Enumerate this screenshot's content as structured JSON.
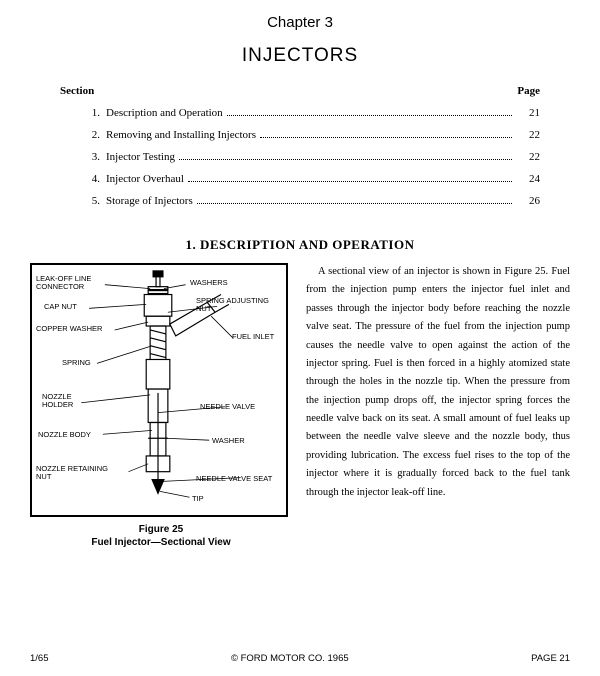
{
  "chapter": "Chapter 3",
  "title": "INJECTORS",
  "toc": {
    "head_section": "Section",
    "head_page": "Page",
    "items": [
      {
        "num": "1.",
        "label": "Description and Operation",
        "page": "21"
      },
      {
        "num": "2.",
        "label": "Removing and Installing Injectors",
        "page": "22"
      },
      {
        "num": "3.",
        "label": "Injector Testing",
        "page": "22"
      },
      {
        "num": "4.",
        "label": "Injector Overhaul",
        "page": "24"
      },
      {
        "num": "5.",
        "label": "Storage of Injectors",
        "page": "26"
      }
    ]
  },
  "section_title": "1.  DESCRIPTION  AND  OPERATION",
  "figure": {
    "labels": {
      "leak_off": "LEAK-OFF LINE\nCONNECTOR",
      "cap_nut": "CAP NUT",
      "copper_washer": "COPPER WASHER",
      "spring": "SPRING",
      "nozzle_holder": "NOZZLE\nHOLDER",
      "nozzle_body": "NOZZLE BODY",
      "nozzle_retaining_nut": "NOZZLE RETAINING\nNUT",
      "washers": "WASHERS",
      "spring_adjusting_nut": "SPRING ADJUSTING\nNUT",
      "fuel_inlet": "FUEL INLET",
      "needle_valve": "NEEDLE VALVE",
      "washer": "WASHER",
      "needle_valve_seat": "NEEDLE VALVE SEAT",
      "tip": "TIP"
    },
    "caption_line1": "Figure 25",
    "caption_line2": "Fuel Injector—Sectional View"
  },
  "body_text": "A sectional view of an injector is shown in Figure 25. Fuel from the injection pump enters the injector fuel inlet and passes through the injector body before reaching the nozzle valve seat. The pressure of the fuel from the injection pump causes the needle valve to open against the action of the injector spring. Fuel is then forced in a highly atomized state through the holes in the nozzle tip. When the pressure from the injection pump drops off, the injector spring forces the needle valve back on its seat. A small amount of fuel leaks up between the needle valve sleeve and the nozzle body, thus providing lubrication. The excess fuel rises to the top of the injector where it is gradually forced back to the fuel tank through the injector leak-off line.",
  "footer": {
    "left": "1/65",
    "center": "© FORD MOTOR CO. 1965",
    "right": "PAGE 21"
  },
  "colors": {
    "text": "#000000",
    "background": "#ffffff",
    "border": "#000000"
  }
}
